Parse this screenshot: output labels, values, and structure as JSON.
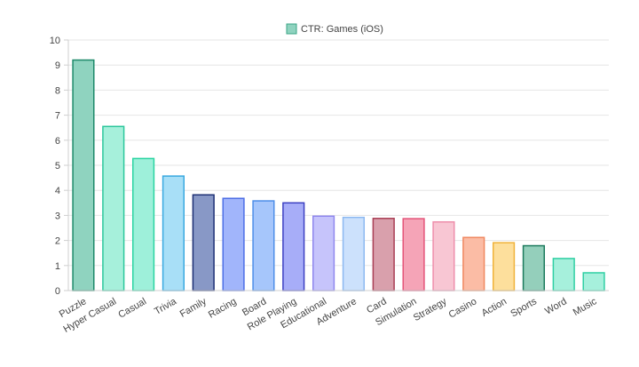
{
  "chart_data": {
    "type": "bar",
    "title": "",
    "xlabel": "",
    "ylabel": "",
    "ylim": [
      0,
      10
    ],
    "yticks": [
      0,
      1,
      2,
      3,
      4,
      5,
      6,
      7,
      8,
      9,
      10
    ],
    "grid": true,
    "legend_position": "top-center",
    "series": [
      {
        "name": "CTR: Games (iOS)",
        "legend_fill": "#8fd3bf",
        "legend_stroke": "#3aa585",
        "values": [
          9.2,
          6.55,
          5.27,
          4.57,
          3.82,
          3.68,
          3.58,
          3.5,
          2.97,
          2.92,
          2.88,
          2.87,
          2.74,
          2.12,
          1.91,
          1.79,
          1.28,
          0.71
        ]
      }
    ],
    "categories": [
      "Puzzle",
      "Hyper Casual",
      "Casual",
      "Trivia",
      "Family",
      "Racing",
      "Board",
      "Role Playing",
      "Educational",
      "Adventure",
      "Card",
      "Simulation",
      "Strategy",
      "Casino",
      "Action",
      "Sports",
      "Word",
      "Music"
    ],
    "bar_colors": [
      {
        "fill": "#8fd3bf",
        "stroke": "#1e8a6a"
      },
      {
        "fill": "#a6f0db",
        "stroke": "#2cc79c"
      },
      {
        "fill": "#9ef0da",
        "stroke": "#2ad4a2"
      },
      {
        "fill": "#a8dff7",
        "stroke": "#3aa9e0"
      },
      {
        "fill": "#8898c6",
        "stroke": "#1d2f74"
      },
      {
        "fill": "#a1b5fb",
        "stroke": "#4e6fe6"
      },
      {
        "fill": "#a6c6fb",
        "stroke": "#4f8fe8"
      },
      {
        "fill": "#a7adf8",
        "stroke": "#3b3fc2"
      },
      {
        "fill": "#c6c4fb",
        "stroke": "#8f87ee"
      },
      {
        "fill": "#cce1fc",
        "stroke": "#8db9f1"
      },
      {
        "fill": "#d9a0ac",
        "stroke": "#a93e55"
      },
      {
        "fill": "#f5a4b7",
        "stroke": "#e4557a"
      },
      {
        "fill": "#f8c6d3",
        "stroke": "#ee8fab"
      },
      {
        "fill": "#fbbca5",
        "stroke": "#f0875f"
      },
      {
        "fill": "#fddf9c",
        "stroke": "#efb23a"
      },
      {
        "fill": "#94cfbb",
        "stroke": "#1c7a5d"
      },
      {
        "fill": "#a6f0dc",
        "stroke": "#2fcfa3"
      },
      {
        "fill": "#a6f0dc",
        "stroke": "#2fcfa3"
      }
    ]
  }
}
